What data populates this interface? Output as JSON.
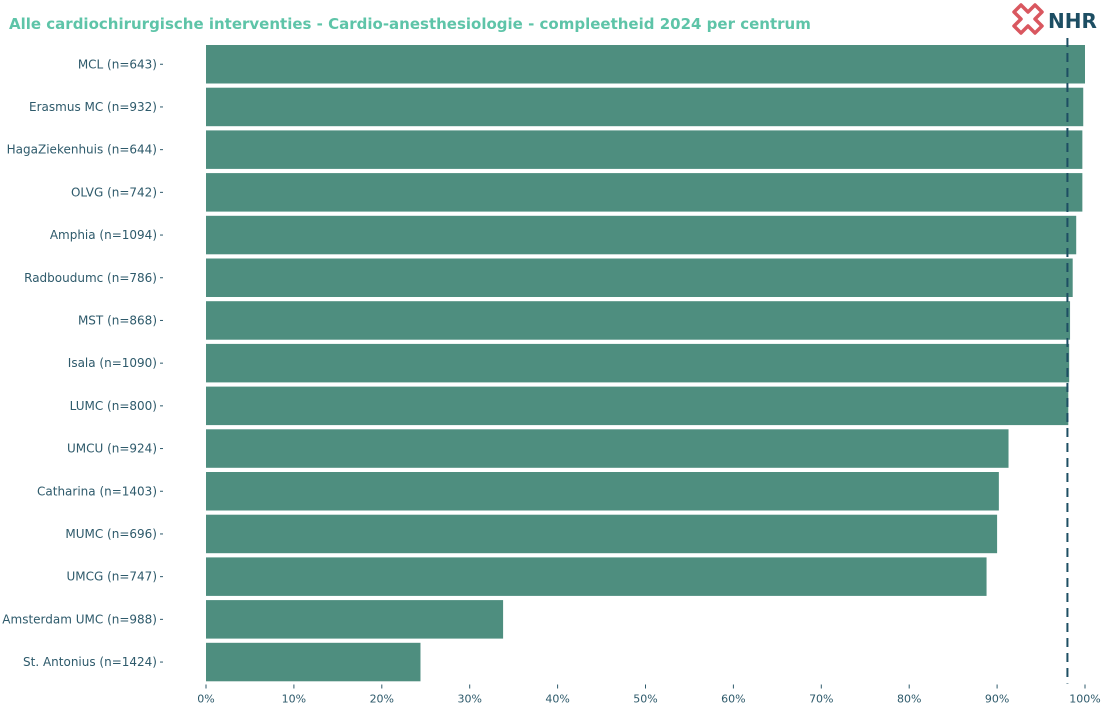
{
  "title": "Alle cardiochirurgische interventies - Cardio-anesthesiologie - compleetheid 2024 per centrum",
  "logo": {
    "text": "NHR",
    "icon": "nhr-cross-icon",
    "icon_color": "#d9575f"
  },
  "colors": {
    "bar": "#4e8e7f",
    "axis_text": "#2e5a6b",
    "title": "#5ec4a8",
    "reference_line": "#1d4e63"
  },
  "chart_data": {
    "type": "bar",
    "orientation": "horizontal",
    "title": "Alle cardiochirurgische interventies - Cardio-anesthesiologie - compleetheid 2024 per centrum",
    "categories": [
      "MCL (n=643)",
      "Erasmus MC (n=932)",
      "HagaZiekenhuis (n=644)",
      "OLVG (n=742)",
      "Amphia (n=1094)",
      "Radboudumc (n=786)",
      "MST (n=868)",
      "Isala (n=1090)",
      "LUMC (n=800)",
      "UMCU (n=924)",
      "Catharina (n=1403)",
      "MUMC (n=696)",
      "UMCG (n=747)",
      "Amsterdam UMC (n=988)",
      "St. Antonius (n=1424)"
    ],
    "values": [
      100.0,
      99.8,
      99.7,
      99.7,
      99.0,
      98.6,
      98.3,
      98.2,
      98.1,
      91.3,
      90.2,
      90.0,
      88.8,
      33.8,
      24.4
    ],
    "xlim": [
      0,
      100
    ],
    "xticks": [
      "0%",
      "10%",
      "20%",
      "30%",
      "40%",
      "50%",
      "60%",
      "70%",
      "80%",
      "90%",
      "100%"
    ],
    "reference_line": {
      "value": 98,
      "style": "dashed"
    },
    "xlabel": "",
    "ylabel": "",
    "grid": false,
    "legend": "none"
  }
}
